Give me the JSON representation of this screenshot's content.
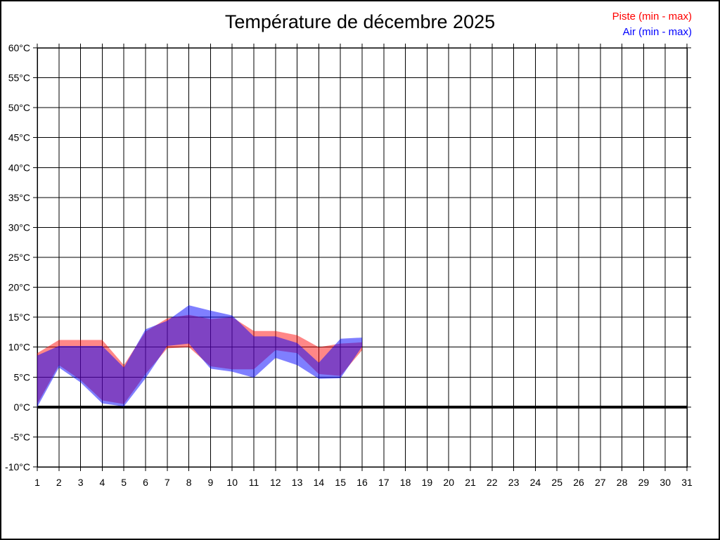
{
  "title": "Température de décembre 2025",
  "legend": {
    "items": [
      {
        "label": "Piste (min - max)",
        "color": "#ff0000"
      },
      {
        "label": "Air (min - max)",
        "color": "#0000ff"
      }
    ]
  },
  "chart_data": {
    "type": "area",
    "title": "Température de décembre 2025",
    "x_ticks": [
      1,
      2,
      3,
      4,
      5,
      6,
      7,
      8,
      9,
      10,
      11,
      12,
      13,
      14,
      15,
      16,
      17,
      18,
      19,
      20,
      21,
      22,
      23,
      24,
      25,
      26,
      27,
      28,
      29,
      30,
      31
    ],
    "y_tick_labels": [
      "-10°C",
      "-5°C",
      "0°C",
      "5°C",
      "10°C",
      "15°C",
      "20°C",
      "25°C",
      "30°C",
      "35°C",
      "40°C",
      "45°C",
      "50°C",
      "55°C",
      "60°C"
    ],
    "ylim": [
      -10,
      60
    ],
    "xlim": [
      1,
      31
    ],
    "ytick_step": 5,
    "ytick_suffix": "°C",
    "grid": true,
    "zero_line_bold": true,
    "legend_position": "top-right",
    "x": [
      1,
      2,
      3,
      4,
      5,
      6,
      7,
      8,
      9,
      10,
      11,
      12,
      13,
      14,
      15,
      16
    ],
    "series": [
      {
        "name": "Piste (min - max)",
        "color": "#ff0000",
        "fill_opacity": 0.47,
        "max": [
          9.0,
          11.2,
          11.2,
          11.2,
          7.0,
          12.6,
          14.8,
          15.4,
          14.7,
          15.0,
          12.7,
          12.7,
          12.0,
          10.0,
          10.6,
          10.8
        ],
        "min": [
          0.5,
          7.0,
          4.5,
          1.1,
          0.5,
          5.5,
          9.8,
          10.0,
          6.8,
          6.3,
          6.3,
          9.5,
          9.0,
          5.5,
          5.2,
          9.5
        ]
      },
      {
        "name": "Air (min - max)",
        "color": "#0000ff",
        "fill_opacity": 0.5,
        "max": [
          8.6,
          10.2,
          10.2,
          10.2,
          6.6,
          13.0,
          14.4,
          17.0,
          16.1,
          15.3,
          11.8,
          11.8,
          10.7,
          7.4,
          11.4,
          11.6
        ],
        "min": [
          0.0,
          6.6,
          4.1,
          0.6,
          0.1,
          4.8,
          10.2,
          10.6,
          6.4,
          5.9,
          4.9,
          8.2,
          7.0,
          4.7,
          4.8,
          10.1
        ]
      }
    ]
  }
}
